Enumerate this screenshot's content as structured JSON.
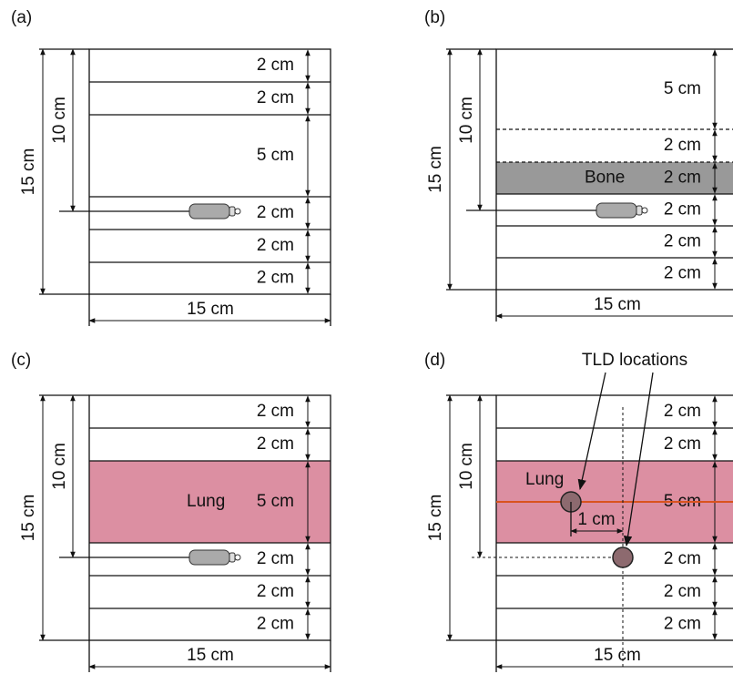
{
  "panels": [
    {
      "label": "(a)",
      "layers": [
        "2 cm",
        "2 cm",
        "5 cm",
        "2 cm",
        "2 cm",
        "2 cm"
      ],
      "depth_label": "10 cm",
      "height_label": "15 cm",
      "width_label": "15 cm"
    },
    {
      "label": "(b)",
      "layers": [
        "5 cm",
        "2 cm",
        "2 cm",
        "2 cm",
        "2 cm",
        "2 cm"
      ],
      "material": "Bone",
      "depth_label": "10 cm",
      "height_label": "15 cm",
      "width_label": "15 cm"
    },
    {
      "label": "(c)",
      "layers": [
        "2 cm",
        "2 cm",
        "5 cm",
        "2 cm",
        "2 cm",
        "2 cm"
      ],
      "material": "Lung",
      "depth_label": "10 cm",
      "height_label": "15 cm",
      "width_label": "15 cm"
    },
    {
      "label": "(d)",
      "layers": [
        "2 cm",
        "2 cm",
        "5 cm",
        "2 cm",
        "2 cm",
        "2 cm"
      ],
      "material": "Lung",
      "depth_label": "10 cm",
      "height_label": "15 cm",
      "width_label": "15 cm",
      "annotation": "TLD locations",
      "offset_label": "1 cm"
    }
  ]
}
